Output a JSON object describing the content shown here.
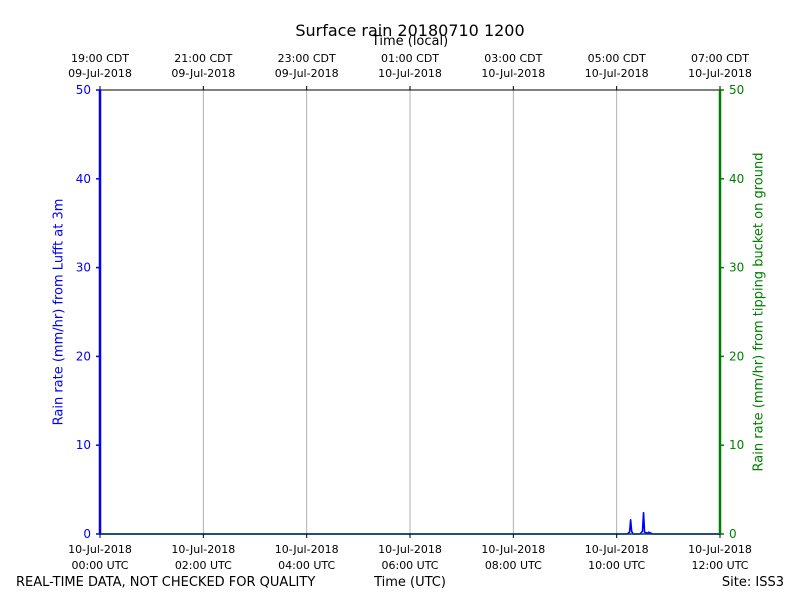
{
  "chart_data": {
    "type": "line",
    "title": "Surface rain 20180710 1200",
    "xlabel": "Time (UTC)",
    "xlabel_top": "Time (local)",
    "ylabel_left": "Rain rate (mm/hr) from Lufft at 3m",
    "ylabel_right": "Rain rate (mm/hr) from tipping bucket on ground",
    "ylim": [
      0,
      50
    ],
    "y_ticks": [
      "0",
      "10",
      "20",
      "30",
      "40",
      "50"
    ],
    "xlim_hours": [
      0,
      12
    ],
    "grid": "vertical",
    "x_ticks_bottom": [
      {
        "hour": 0,
        "date": "10-Jul-2018",
        "time": "00:00 UTC"
      },
      {
        "hour": 2,
        "date": "10-Jul-2018",
        "time": "02:00 UTC"
      },
      {
        "hour": 4,
        "date": "10-Jul-2018",
        "time": "04:00 UTC"
      },
      {
        "hour": 6,
        "date": "10-Jul-2018",
        "time": "06:00 UTC"
      },
      {
        "hour": 8,
        "date": "10-Jul-2018",
        "time": "08:00 UTC"
      },
      {
        "hour": 10,
        "date": "10-Jul-2018",
        "time": "10:00 UTC"
      },
      {
        "hour": 12,
        "date": "10-Jul-2018",
        "time": "12:00 UTC"
      }
    ],
    "x_ticks_top": [
      {
        "hour": 0,
        "time": "19:00 CDT",
        "date": "09-Jul-2018"
      },
      {
        "hour": 2,
        "time": "21:00 CDT",
        "date": "09-Jul-2018"
      },
      {
        "hour": 4,
        "time": "23:00 CDT",
        "date": "09-Jul-2018"
      },
      {
        "hour": 6,
        "time": "01:00 CDT",
        "date": "10-Jul-2018"
      },
      {
        "hour": 8,
        "time": "03:00 CDT",
        "date": "10-Jul-2018"
      },
      {
        "hour": 10,
        "time": "05:00 CDT",
        "date": "10-Jul-2018"
      },
      {
        "hour": 12,
        "time": "07:00 CDT",
        "date": "10-Jul-2018"
      }
    ],
    "series": [
      {
        "color": "#0000ff",
        "axis": "left",
        "points": [
          [
            0,
            0
          ],
          [
            10.2,
            0
          ],
          [
            10.25,
            0.2
          ],
          [
            10.27,
            1.6
          ],
          [
            10.29,
            0.3
          ],
          [
            10.32,
            0
          ],
          [
            10.45,
            0
          ],
          [
            10.5,
            0.3
          ],
          [
            10.52,
            2.4
          ],
          [
            10.54,
            0.2
          ],
          [
            10.6,
            0.1
          ],
          [
            10.62,
            0.2
          ],
          [
            10.66,
            0.1
          ],
          [
            10.7,
            0
          ],
          [
            12,
            0
          ]
        ]
      },
      {
        "color": "#17becf",
        "axis": "right",
        "points": [
          [
            0,
            0
          ],
          [
            12,
            0
          ]
        ]
      }
    ]
  },
  "footer": {
    "left": "REAL-TIME DATA, NOT CHECKED FOR QUALITY",
    "right": "Site: ISS3"
  },
  "colors": {
    "left_axis": "#0000ff",
    "right_axis": "#008000",
    "grid": "#b0b0b0"
  }
}
